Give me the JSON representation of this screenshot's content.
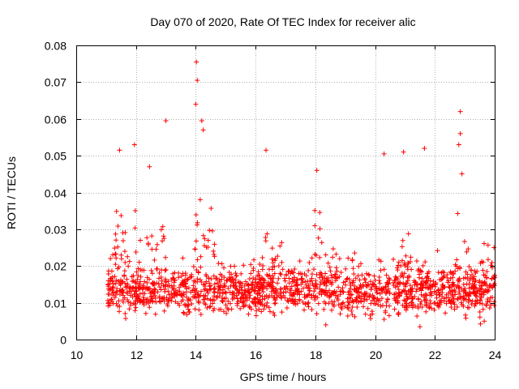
{
  "chart_data": {
    "type": "scatter",
    "title": "Day 070 of 2020, Rate Of TEC Index for receiver alic",
    "xlabel": "GPS time / hours",
    "ylabel": "ROTI / TECUs",
    "xlim": [
      10,
      24
    ],
    "ylim": [
      0,
      0.08
    ],
    "xticks": [
      10,
      12,
      14,
      16,
      18,
      20,
      22,
      24
    ],
    "yticks": [
      0,
      0.01,
      0.02,
      0.03,
      0.04,
      0.05,
      0.06,
      0.07,
      0.08
    ],
    "xtick_labels": [
      "10",
      "12",
      "14",
      "16",
      "18",
      "20",
      "22",
      "24"
    ],
    "ytick_labels": [
      "0",
      "0.01",
      "0.02",
      "0.03",
      "0.04",
      "0.05",
      "0.06",
      "0.07",
      "0.08"
    ],
    "grid": true,
    "marker": "+",
    "color": "#ff0000",
    "series": [
      {
        "name": "ROTI",
        "data_range": {
          "x_start": 11.05,
          "x_end": 24.0,
          "typical_y_min": 0.005,
          "typical_y_max": 0.025
        },
        "notable_points": [
          {
            "x": 13.0,
            "y": 0.0595
          },
          {
            "x": 14.02,
            "y": 0.0755
          },
          {
            "x": 14.05,
            "y": 0.0705
          },
          {
            "x": 14.0,
            "y": 0.064
          },
          {
            "x": 14.2,
            "y": 0.0595
          },
          {
            "x": 14.25,
            "y": 0.057
          },
          {
            "x": 11.45,
            "y": 0.0515
          },
          {
            "x": 11.95,
            "y": 0.053
          },
          {
            "x": 12.45,
            "y": 0.047
          },
          {
            "x": 16.35,
            "y": 0.0515
          },
          {
            "x": 18.05,
            "y": 0.046
          },
          {
            "x": 20.3,
            "y": 0.0505
          },
          {
            "x": 20.95,
            "y": 0.051
          },
          {
            "x": 21.65,
            "y": 0.052
          },
          {
            "x": 22.85,
            "y": 0.062
          },
          {
            "x": 22.85,
            "y": 0.056
          },
          {
            "x": 22.8,
            "y": 0.053
          },
          {
            "x": 21.5,
            "y": 0.0035
          },
          {
            "x": 18.35,
            "y": 0.004
          },
          {
            "x": 23.65,
            "y": 0.005
          }
        ],
        "activity_peaks": [
          {
            "x": 11.45,
            "amp": 0.026
          },
          {
            "x": 11.95,
            "amp": 0.018
          },
          {
            "x": 12.45,
            "amp": 0.016
          },
          {
            "x": 12.85,
            "amp": 0.014
          },
          {
            "x": 14.15,
            "amp": 0.028
          },
          {
            "x": 14.5,
            "amp": 0.014
          },
          {
            "x": 16.3,
            "amp": 0.016
          },
          {
            "x": 16.85,
            "amp": 0.013
          },
          {
            "x": 18.1,
            "amp": 0.02
          },
          {
            "x": 18.7,
            "amp": 0.012
          },
          {
            "x": 19.4,
            "amp": 0.012
          },
          {
            "x": 20.95,
            "amp": 0.012
          },
          {
            "x": 22.9,
            "amp": 0.028
          },
          {
            "x": 23.8,
            "amp": 0.012
          }
        ]
      }
    ]
  }
}
